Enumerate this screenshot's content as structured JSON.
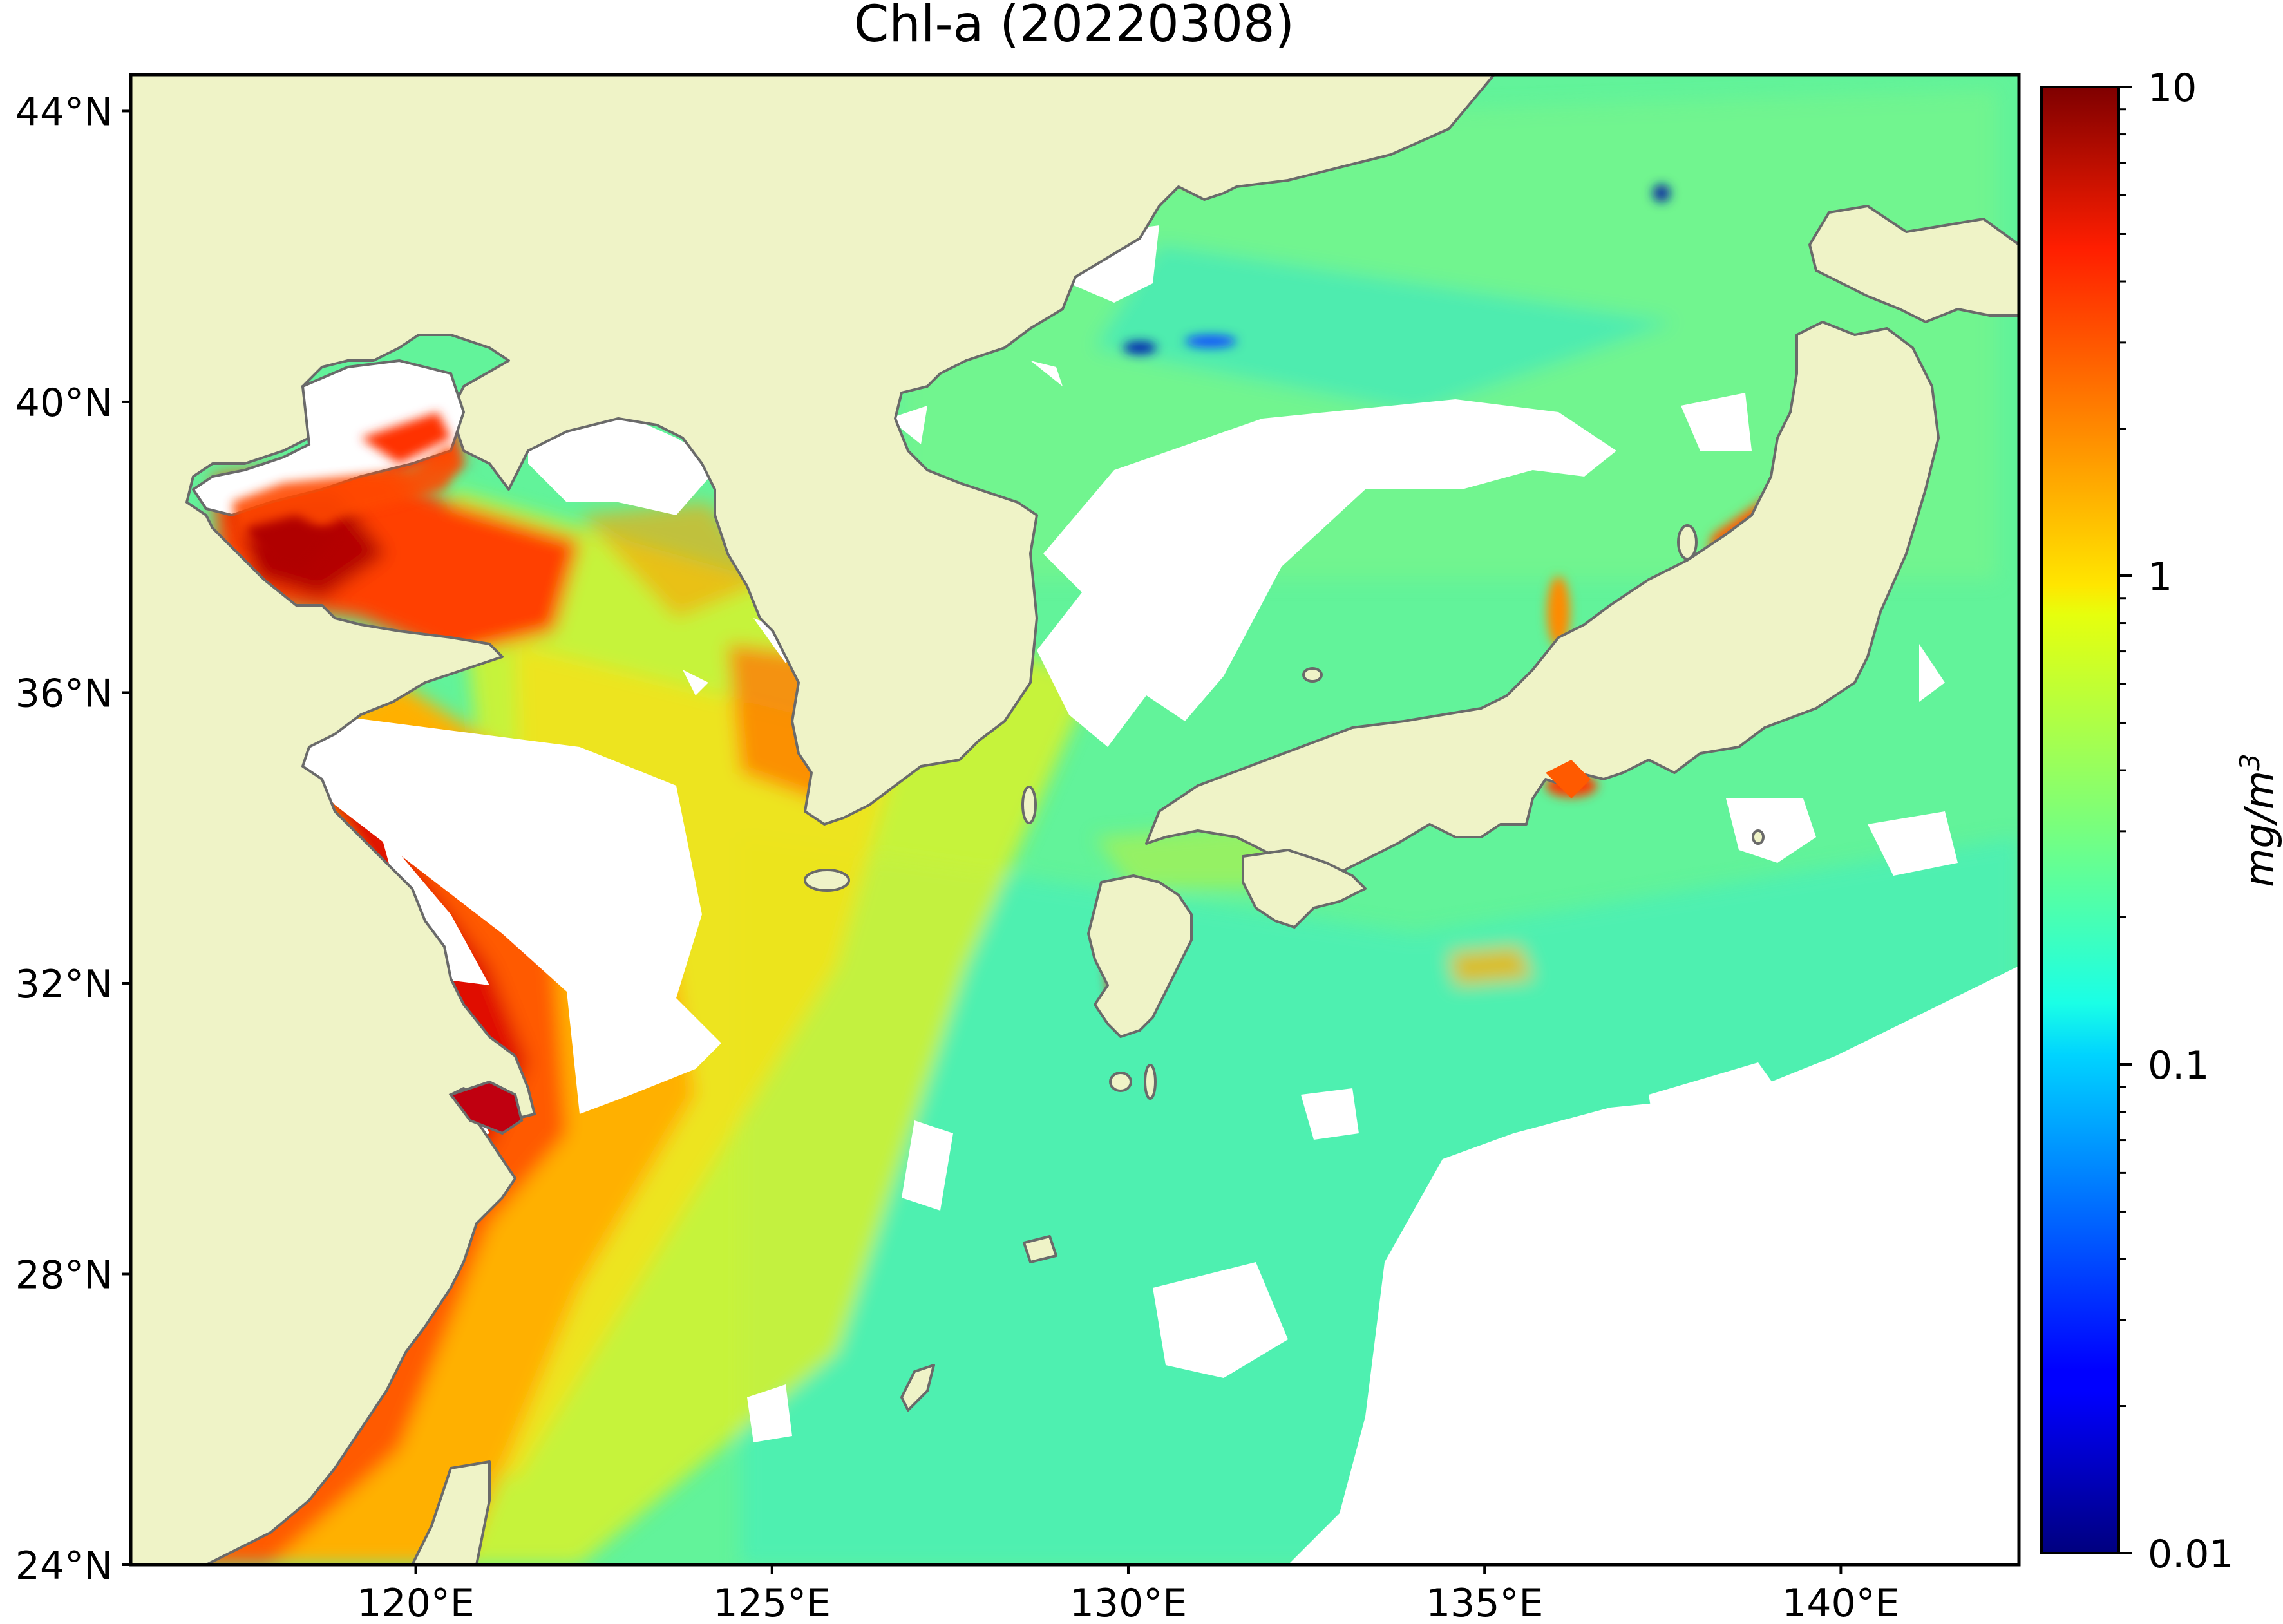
{
  "title": "Chl-a (20220308)",
  "map": {
    "projection": "equirectangular",
    "lon_range": [
      116.0,
      142.5
    ],
    "lat_range": [
      24.0,
      44.5
    ],
    "lat_ticks": [
      {
        "value": 44,
        "label": "44°N"
      },
      {
        "value": 40,
        "label": "40°N"
      },
      {
        "value": 36,
        "label": "36°N"
      },
      {
        "value": 32,
        "label": "32°N"
      },
      {
        "value": 28,
        "label": "28°N"
      },
      {
        "value": 24,
        "label": "24°N"
      }
    ],
    "lon_ticks": [
      {
        "value": 120,
        "label": "120°E"
      },
      {
        "value": 125,
        "label": "125°E"
      },
      {
        "value": 130,
        "label": "130°E"
      },
      {
        "value": 135,
        "label": "135°E"
      },
      {
        "value": 140,
        "label": "140°E"
      }
    ],
    "colors": {
      "land": "#eff3c7",
      "coastline": "#6a6a6a",
      "cloud_no_data": "#ffffff",
      "frame": "#000000"
    }
  },
  "colorbar": {
    "colormap": "jet",
    "scale": "log",
    "range": [
      0.01,
      10
    ],
    "unit_label": "mg/m",
    "unit_exponent": "3",
    "ticks": [
      {
        "value": 10,
        "label": "10"
      },
      {
        "value": 1,
        "label": "1"
      },
      {
        "value": 0.1,
        "label": "0.1"
      },
      {
        "value": 0.01,
        "label": "0.01"
      }
    ]
  }
}
